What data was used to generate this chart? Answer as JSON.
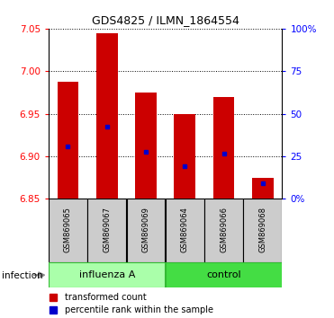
{
  "title": "GDS4825 / ILMN_1864554",
  "samples": [
    "GSM869065",
    "GSM869067",
    "GSM869069",
    "GSM869064",
    "GSM869066",
    "GSM869068"
  ],
  "bar_top": [
    6.988,
    7.045,
    6.975,
    6.95,
    6.97,
    6.875
  ],
  "bar_bottom": 6.85,
  "blue_pos": [
    6.912,
    6.935,
    6.905,
    6.888,
    6.903,
    6.868
  ],
  "ylim": [
    6.85,
    7.05
  ],
  "y_ticks": [
    6.85,
    6.9,
    6.95,
    7.0,
    7.05
  ],
  "right_ylim": [
    0,
    100
  ],
  "right_ticks": [
    0,
    25,
    50,
    75,
    100
  ],
  "bar_color": "#cc0000",
  "blue_color": "#0000cc",
  "influenza_color": "#aaffaa",
  "control_color": "#44dd44",
  "sample_box_color": "#cccccc",
  "bar_width": 0.55,
  "group1_label": "influenza A",
  "group2_label": "control",
  "group_label": "infection",
  "legend_red": "transformed count",
  "legend_blue": "percentile rank within the sample",
  "title_fontsize": 9,
  "tick_fontsize": 7.5,
  "sample_fontsize": 6,
  "group_fontsize": 8,
  "legend_fontsize": 7
}
